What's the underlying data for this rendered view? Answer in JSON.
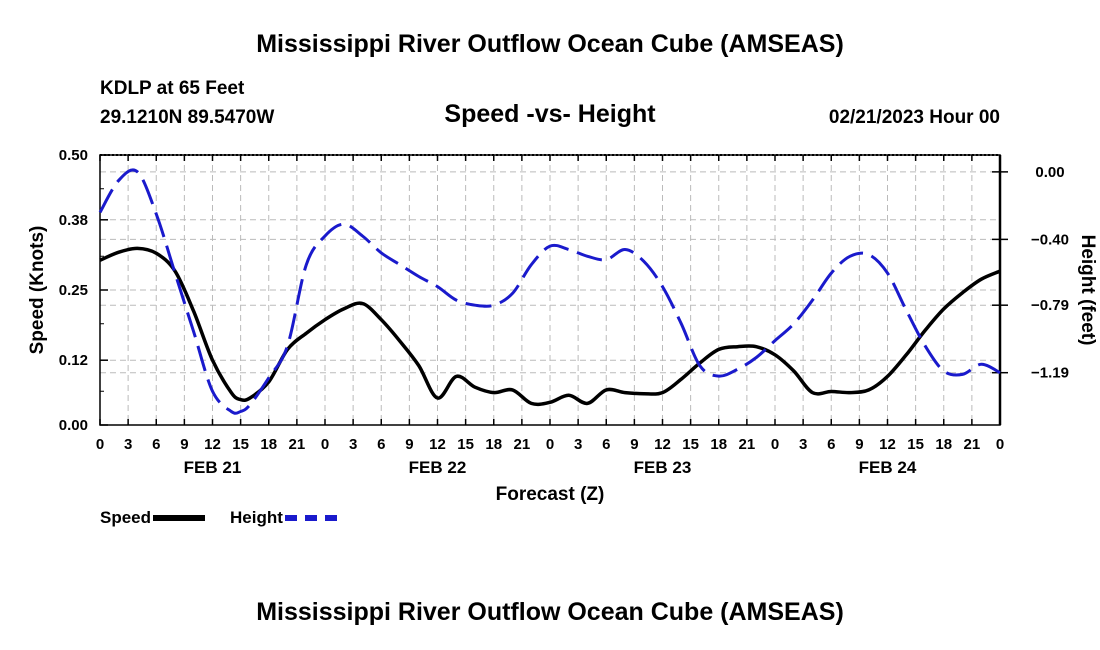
{
  "header": {
    "title": "Mississippi River Outflow Ocean Cube (AMSEAS)",
    "station": "KDLP at 65 Feet",
    "coords": "29.1210N  89.5470W",
    "subtitle": "Speed -vs- Height",
    "datetime": "02/21/2023 Hour 00",
    "repeat_title": "Mississippi River Outflow Ocean Cube (AMSEAS)"
  },
  "legend": {
    "speed_label": "Speed",
    "height_label": "Height"
  },
  "colors": {
    "speed": "#000000",
    "height": "#1a1acc",
    "grid": "#bbbbbb"
  },
  "chart_data": {
    "type": "line",
    "title": "Speed -vs- Height",
    "xlabel": "Forecast (Z)",
    "ylabel": "Speed (Knots)",
    "y2label": "Height (feet)",
    "x_range": [
      0,
      96
    ],
    "ylim": [
      0,
      0.5
    ],
    "y_ticks": [
      "0.00",
      "0.12",
      "0.25",
      "0.38",
      "0.50"
    ],
    "y2lim": [
      -1.5,
      0.1
    ],
    "y2_ticks": [
      {
        "value": 0.0,
        "label": "0.00"
      },
      {
        "value": -0.4,
        "label": "-0.40"
      },
      {
        "value": -0.79,
        "label": "-0.79"
      },
      {
        "value": -1.19,
        "label": "-1.19"
      }
    ],
    "x_tick_labels": [
      "0",
      "3",
      "6",
      "9",
      "12",
      "15",
      "18",
      "21",
      "0",
      "3",
      "6",
      "9",
      "12",
      "15",
      "18",
      "21",
      "0",
      "3",
      "6",
      "9",
      "12",
      "15",
      "18",
      "21",
      "0",
      "3",
      "6",
      "9",
      "12",
      "15",
      "18",
      "21",
      "0"
    ],
    "day_labels": [
      {
        "x": 12,
        "label": "FEB 21"
      },
      {
        "x": 36,
        "label": "FEB 22"
      },
      {
        "x": 60,
        "label": "FEB 23"
      },
      {
        "x": 84,
        "label": "FEB 24"
      }
    ],
    "series": [
      {
        "name": "Speed",
        "axis": "left",
        "style": "solid",
        "x": [
          0,
          2,
          4,
          6,
          8,
          10,
          12,
          14,
          15,
          16,
          18,
          20,
          22,
          24,
          26,
          28,
          30,
          32,
          34,
          36,
          38,
          40,
          42,
          44,
          46,
          48,
          50,
          52,
          54,
          56,
          58,
          60,
          62,
          64,
          66,
          68,
          70,
          72,
          74,
          76,
          78,
          80,
          82,
          84,
          86,
          88,
          90,
          92,
          94,
          96
        ],
        "values": [
          0.305,
          0.32,
          0.327,
          0.318,
          0.285,
          0.21,
          0.12,
          0.06,
          0.047,
          0.05,
          0.08,
          0.14,
          0.17,
          0.195,
          0.215,
          0.225,
          0.195,
          0.155,
          0.11,
          0.05,
          0.09,
          0.07,
          0.06,
          0.065,
          0.04,
          0.042,
          0.055,
          0.04,
          0.065,
          0.06,
          0.058,
          0.06,
          0.085,
          0.115,
          0.14,
          0.145,
          0.145,
          0.13,
          0.1,
          0.06,
          0.062,
          0.06,
          0.065,
          0.09,
          0.13,
          0.175,
          0.215,
          0.245,
          0.27,
          0.285
        ]
      },
      {
        "name": "Height",
        "axis": "right",
        "style": "dashed",
        "x": [
          0,
          2,
          4,
          6,
          8,
          10,
          12,
          14,
          15,
          16,
          18,
          20,
          22,
          24,
          26,
          28,
          30,
          32,
          34,
          36,
          38,
          40,
          42,
          44,
          46,
          48,
          50,
          52,
          54,
          56,
          58,
          60,
          62,
          64,
          66,
          68,
          70,
          72,
          74,
          76,
          78,
          80,
          82,
          84,
          86,
          88,
          90,
          92,
          94,
          96
        ],
        "values": [
          -0.24,
          -0.05,
          0.0,
          -0.25,
          -0.6,
          -0.95,
          -1.3,
          -1.42,
          -1.42,
          -1.38,
          -1.22,
          -1.03,
          -0.55,
          -0.38,
          -0.31,
          -0.38,
          -0.48,
          -0.55,
          -0.62,
          -0.68,
          -0.76,
          -0.79,
          -0.79,
          -0.72,
          -0.55,
          -0.44,
          -0.46,
          -0.5,
          -0.52,
          -0.46,
          -0.53,
          -0.68,
          -0.9,
          -1.15,
          -1.21,
          -1.17,
          -1.1,
          -1.0,
          -0.9,
          -0.76,
          -0.6,
          -0.5,
          -0.49,
          -0.6,
          -0.82,
          -1.03,
          -1.18,
          -1.2,
          -1.14,
          -1.19
        ]
      }
    ]
  }
}
